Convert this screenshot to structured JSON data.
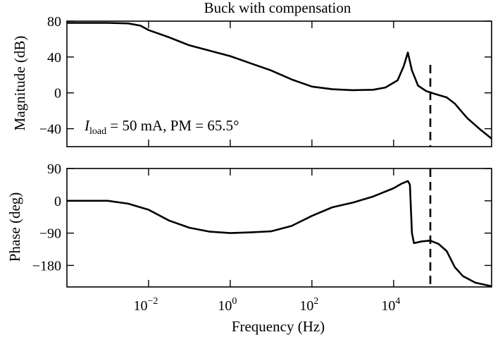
{
  "chart_data": {
    "type": "line",
    "title": "Buck with compensation",
    "xlabel": "Frequency (Hz)",
    "xscale": "log",
    "xlim_log10": [
      -4,
      6.4
    ],
    "x_ticks": [
      {
        "base": "10",
        "exp": "−2",
        "log10": -2
      },
      {
        "base": "10",
        "exp": "0",
        "log10": 0
      },
      {
        "base": "10",
        "exp": "2",
        "log10": 2
      },
      {
        "base": "10",
        "exp": "4",
        "log10": 4
      }
    ],
    "crossover_marker_log10": 4.9,
    "magnitude": {
      "ylabel": "Magnitude (dB)",
      "ylim": [
        -60,
        80
      ],
      "yticks": [
        80,
        40,
        0,
        -40
      ],
      "ytick_labels": [
        "80",
        "40",
        "0",
        "−40"
      ],
      "annotation": {
        "symbol": "I",
        "subscript": "load",
        "text": " = 50 mA, PM = 65.5°"
      },
      "points": [
        [
          -4,
          78
        ],
        [
          -3,
          78
        ],
        [
          -2.5,
          77.5
        ],
        [
          -2.2,
          75
        ],
        [
          -2,
          70
        ],
        [
          -1.5,
          62
        ],
        [
          -1,
          53
        ],
        [
          0,
          41
        ],
        [
          0.5,
          33
        ],
        [
          1,
          25
        ],
        [
          1.5,
          15
        ],
        [
          2,
          7
        ],
        [
          2.5,
          4
        ],
        [
          3,
          3
        ],
        [
          3.5,
          3.5
        ],
        [
          3.8,
          6
        ],
        [
          4.1,
          14
        ],
        [
          4.25,
          30
        ],
        [
          4.35,
          45
        ],
        [
          4.45,
          25
        ],
        [
          4.6,
          8
        ],
        [
          4.8,
          2
        ],
        [
          5,
          -1
        ],
        [
          5.3,
          -5
        ],
        [
          5.5,
          -12
        ],
        [
          5.8,
          -28
        ],
        [
          6.1,
          -40
        ],
        [
          6.4,
          -51
        ]
      ]
    },
    "phase": {
      "ylabel": "Phase (deg)",
      "ylim": [
        -240,
        90
      ],
      "yticks": [
        90,
        0,
        -90,
        -180
      ],
      "ytick_labels": [
        "90",
        "0",
        "−90",
        "−180"
      ],
      "points": [
        [
          -4,
          0
        ],
        [
          -3,
          0
        ],
        [
          -2.5,
          -8
        ],
        [
          -2,
          -25
        ],
        [
          -1.5,
          -55
        ],
        [
          -1,
          -75
        ],
        [
          -0.5,
          -86
        ],
        [
          0,
          -90
        ],
        [
          0.5,
          -88
        ],
        [
          1,
          -85
        ],
        [
          1.5,
          -70
        ],
        [
          2,
          -42
        ],
        [
          2.5,
          -18
        ],
        [
          3,
          -5
        ],
        [
          3.5,
          12
        ],
        [
          4,
          35
        ],
        [
          4.2,
          48
        ],
        [
          4.35,
          55
        ],
        [
          4.4,
          45
        ],
        [
          4.45,
          -90
        ],
        [
          4.5,
          -118
        ],
        [
          4.7,
          -113
        ],
        [
          4.9,
          -111
        ],
        [
          5.1,
          -120
        ],
        [
          5.3,
          -140
        ],
        [
          5.5,
          -185
        ],
        [
          5.7,
          -210
        ],
        [
          6,
          -228
        ],
        [
          6.4,
          -238
        ]
      ]
    }
  }
}
